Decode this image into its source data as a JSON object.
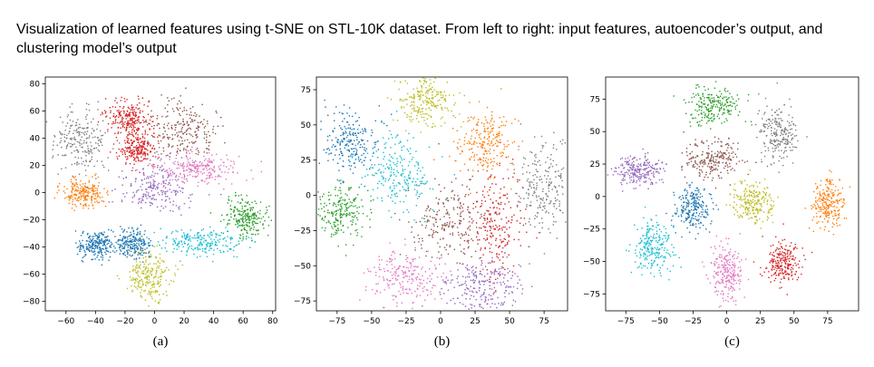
{
  "caption": "Visualization of learned features using t-SNE on STL-10K dataset. From left to right: input features, autoencoder’s output, and clustering model’s output",
  "chart_data": [
    {
      "type": "scatter",
      "label": "(a)",
      "xlim": [
        -74,
        82
      ],
      "ylim": [
        -87,
        85
      ],
      "xticks": [
        -60,
        -40,
        -20,
        0,
        20,
        40,
        60,
        80
      ],
      "yticks": [
        -80,
        -60,
        -40,
        -20,
        0,
        20,
        40,
        60,
        80
      ],
      "xticklabels": [
        "−60",
        "−40",
        "−20",
        "0",
        "20",
        "40",
        "60",
        "80"
      ],
      "yticklabels": [
        "−80",
        "−60",
        "−40",
        "−20",
        "0",
        "20",
        "40",
        "60",
        "80"
      ],
      "grid": false,
      "clusters": [
        {
          "color": "#1f77b4",
          "center": [
            -40,
            -38
          ],
          "spread": [
            6,
            5
          ]
        },
        {
          "color": "#1f77b4",
          "center": [
            -15,
            -38
          ],
          "spread": [
            6,
            5
          ]
        },
        {
          "color": "#ff7f0e",
          "center": [
            -48,
            0
          ],
          "spread": [
            7,
            5
          ]
        },
        {
          "color": "#2ca02c",
          "center": [
            62,
            -18
          ],
          "spread": [
            7,
            7
          ]
        },
        {
          "color": "#d62728",
          "center": [
            -18,
            55
          ],
          "spread": [
            8,
            6
          ]
        },
        {
          "color": "#d62728",
          "center": [
            -12,
            32
          ],
          "spread": [
            6,
            6
          ]
        },
        {
          "color": "#9467bd",
          "center": [
            0,
            5
          ],
          "spread": [
            12,
            9
          ]
        },
        {
          "color": "#8c564b",
          "center": [
            20,
            45
          ],
          "spread": [
            12,
            12
          ]
        },
        {
          "color": "#e377c2",
          "center": [
            30,
            18
          ],
          "spread": [
            16,
            6
          ]
        },
        {
          "color": "#7f7f7f",
          "center": [
            -50,
            38
          ],
          "spread": [
            10,
            11
          ]
        },
        {
          "color": "#bcbd22",
          "center": [
            -4,
            -62
          ],
          "spread": [
            7,
            9
          ]
        },
        {
          "color": "#17becf",
          "center": [
            30,
            -36
          ],
          "spread": [
            16,
            5
          ]
        }
      ]
    },
    {
      "type": "scatter",
      "label": "(b)",
      "xlim": [
        -90,
        92
      ],
      "ylim": [
        -82,
        84
      ],
      "xticks": [
        -75,
        -50,
        -25,
        0,
        25,
        50,
        75
      ],
      "yticks": [
        -75,
        -50,
        -25,
        0,
        25,
        50,
        75
      ],
      "xticklabels": [
        "−75",
        "−50",
        "−25",
        "0",
        "25",
        "50",
        "75"
      ],
      "yticklabels": [
        "−75",
        "−50",
        "−25",
        "0",
        "25",
        "50",
        "75"
      ],
      "grid": false,
      "clusters": [
        {
          "color": "#1f77b4",
          "center": [
            -65,
            38
          ],
          "spread": [
            10,
            12
          ]
        },
        {
          "color": "#ff7f0e",
          "center": [
            33,
            38
          ],
          "spread": [
            10,
            12
          ]
        },
        {
          "color": "#2ca02c",
          "center": [
            -72,
            -12
          ],
          "spread": [
            10,
            10
          ]
        },
        {
          "color": "#d62728",
          "center": [
            40,
            -20
          ],
          "spread": [
            10,
            20
          ]
        },
        {
          "color": "#9467bd",
          "center": [
            30,
            -65
          ],
          "spread": [
            14,
            9
          ]
        },
        {
          "color": "#8c564b",
          "center": [
            5,
            -20
          ],
          "spread": [
            14,
            14
          ]
        },
        {
          "color": "#e377c2",
          "center": [
            -25,
            -58
          ],
          "spread": [
            14,
            10
          ]
        },
        {
          "color": "#7f7f7f",
          "center": [
            75,
            5
          ],
          "spread": [
            10,
            16
          ]
        },
        {
          "color": "#bcbd22",
          "center": [
            -10,
            68
          ],
          "spread": [
            10,
            10
          ]
        },
        {
          "color": "#17becf",
          "center": [
            -30,
            15
          ],
          "spread": [
            12,
            14
          ]
        }
      ]
    },
    {
      "type": "scatter",
      "label": "(c)",
      "xlim": [
        -90,
        98
      ],
      "ylim": [
        -88,
        92
      ],
      "xticks": [
        -75,
        -50,
        -25,
        0,
        25,
        50,
        75
      ],
      "yticks": [
        -75,
        -50,
        -25,
        0,
        25,
        50,
        75
      ],
      "xticklabels": [
        "−75",
        "−50",
        "−25",
        "0",
        "25",
        "50",
        "75"
      ],
      "yticklabels": [
        "−75",
        "−50",
        "−25",
        "0",
        "25",
        "50",
        "75"
      ],
      "grid": false,
      "clusters": [
        {
          "color": "#1f77b4",
          "center": [
            -25,
            -10
          ],
          "spread": [
            7,
            8
          ]
        },
        {
          "color": "#ff7f0e",
          "center": [
            75,
            -5
          ],
          "spread": [
            6,
            10
          ]
        },
        {
          "color": "#2ca02c",
          "center": [
            -10,
            70
          ],
          "spread": [
            10,
            7
          ]
        },
        {
          "color": "#d62728",
          "center": [
            42,
            -50
          ],
          "spread": [
            7,
            8
          ]
        },
        {
          "color": "#9467bd",
          "center": [
            -65,
            20
          ],
          "spread": [
            9,
            6
          ]
        },
        {
          "color": "#8c564b",
          "center": [
            -10,
            28
          ],
          "spread": [
            11,
            7
          ]
        },
        {
          "color": "#e377c2",
          "center": [
            0,
            -58
          ],
          "spread": [
            6,
            11
          ]
        },
        {
          "color": "#7f7f7f",
          "center": [
            38,
            48
          ],
          "spread": [
            7,
            11
          ]
        },
        {
          "color": "#bcbd22",
          "center": [
            20,
            -5
          ],
          "spread": [
            8,
            9
          ]
        },
        {
          "color": "#17becf",
          "center": [
            -55,
            -38
          ],
          "spread": [
            7,
            11
          ]
        }
      ]
    }
  ]
}
